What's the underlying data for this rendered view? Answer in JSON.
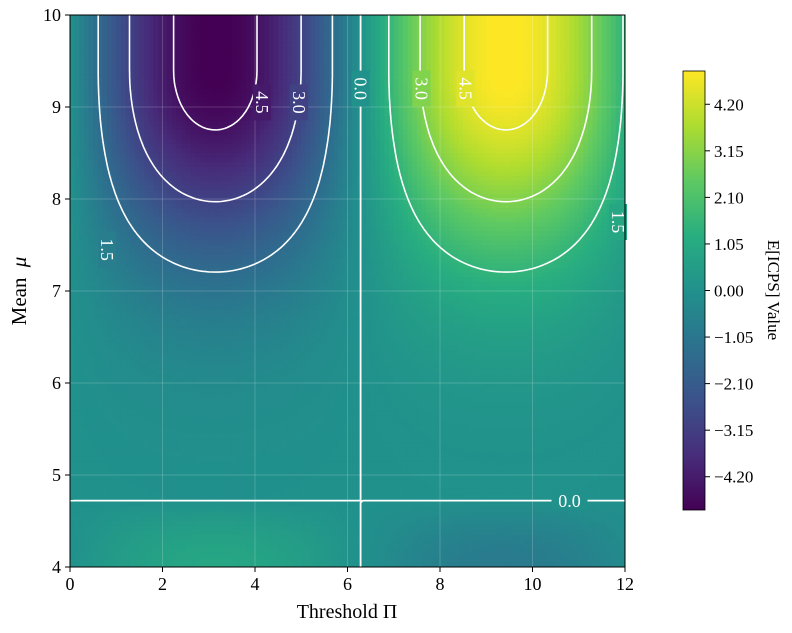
{
  "chart_data": {
    "type": "heatmap",
    "title": "",
    "xlabel": "Threshold Π",
    "ylabel_text": "Mean",
    "ylabel_symbol": "μ",
    "xlim": [
      0,
      12
    ],
    "ylim": [
      4,
      10
    ],
    "xticks": [
      "0",
      "2",
      "4",
      "6",
      "8",
      "10",
      "12"
    ],
    "yticks": [
      "4",
      "5",
      "6",
      "7",
      "8",
      "9",
      "10"
    ],
    "field": {
      "description": "E[ICPS] ≈ -5 · sin(x/2) · g(μ); minimum near (3.1, 9.4), maximum near (9.4, 9.4); zero contours at x = 2π and μ ≈ 4.7",
      "amplitude": 5.0,
      "peak_mu": 9.4,
      "spread_mu": 2.0,
      "cross_mu": 4.72
    },
    "contour_levels": [
      -4.5,
      -3.0,
      -1.5,
      0.0,
      1.5,
      3.0,
      4.5
    ],
    "contour_labels": [
      {
        "text": "4.5",
        "x": 4.15,
        "mu": 9.05
      },
      {
        "text": "3.0",
        "x": 4.95,
        "mu": 9.05
      },
      {
        "text": "1.5",
        "x": 0.8,
        "mu": 7.45
      },
      {
        "text": "0.0",
        "x": 6.28,
        "mu": 9.2
      },
      {
        "text": "3.0",
        "x": 7.6,
        "mu": 9.2
      },
      {
        "text": "4.5",
        "x": 8.55,
        "mu": 9.2
      },
      {
        "text": "1.5",
        "x": 11.85,
        "mu": 7.75
      },
      {
        "text": "0.0",
        "x": 10.8,
        "mu": 4.72
      }
    ],
    "colorbar": {
      "label": "E[ICPS] Value",
      "ticks": [
        "4.20",
        "3.15",
        "2.10",
        "1.05",
        "0.00",
        "−1.05",
        "−2.10",
        "−3.15",
        "−4.20"
      ],
      "tick_values": [
        4.2,
        3.15,
        2.1,
        1.05,
        0.0,
        -1.05,
        -2.1,
        -3.15,
        -4.2
      ],
      "range": [
        -4.95,
        4.95
      ]
    }
  }
}
